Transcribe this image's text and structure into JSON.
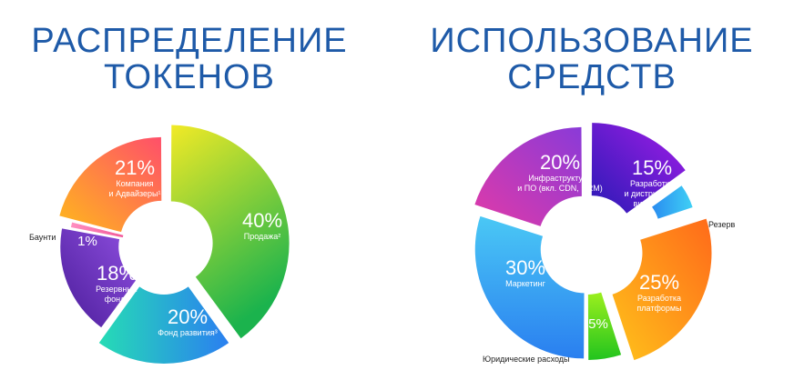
{
  "titles": {
    "left": [
      "РАСПРЕДЕЛЕНИЕ",
      "ТОКЕНОВ"
    ],
    "right": [
      "ИСПОЛЬЗОВАНИЕ",
      "СРЕДСТВ"
    ]
  },
  "chart_data": [
    {
      "type": "pie",
      "title": "РАСПРЕДЕЛЕНИЕ ТОКЕНОВ",
      "slices": [
        {
          "label": "Продажа²",
          "value": 40,
          "display": "40%",
          "colors": [
            "#f2ea26",
            "#1bb34d"
          ]
        },
        {
          "label": "Фонд развития³",
          "value": 20,
          "display": "20%",
          "colors": [
            "#26dcb5",
            "#2a7ff0"
          ]
        },
        {
          "label": "Резервный фонд⁴",
          "value": 18,
          "display": "18%",
          "colors": [
            "#8f4fe0",
            "#4b1d9a"
          ]
        },
        {
          "label": "Баунти",
          "value": 1,
          "display": "1%",
          "colors": [
            "#ff8fc0",
            "#f25a9a"
          ]
        },
        {
          "label": "Компания и Адвайзеры¹",
          "value": 21,
          "display": "21%",
          "colors": [
            "#ffb81c",
            "#ff4f6a"
          ]
        }
      ]
    },
    {
      "type": "pie",
      "title": "ИСПОЛЬЗОВАНИЕ СРЕДСТВ",
      "slices": [
        {
          "label": "Разработка и дистрибуция видео игр",
          "value": 15,
          "display": "15%",
          "colors": [
            "#2a1ab5",
            "#a21de8"
          ]
        },
        {
          "label": "Резерв",
          "value": 5,
          "display": "5%",
          "colors": [
            "#2a8cf0",
            "#3fd0f5"
          ]
        },
        {
          "label": "Разработка платформы",
          "value": 25,
          "display": "25%",
          "colors": [
            "#ff6a1a",
            "#ffc21a"
          ]
        },
        {
          "label": "Юридические расходы",
          "value": 5,
          "display": "5%",
          "colors": [
            "#9bef1e",
            "#22c41e"
          ]
        },
        {
          "label": "Маркетинг",
          "value": 30,
          "display": "30%",
          "colors": [
            "#4ac8f5",
            "#2a7ff0"
          ]
        },
        {
          "label": "Инфраструктура и ПО (вкл. CDN, DRM)",
          "value": 20,
          "display": "20%",
          "colors": [
            "#e03aa8",
            "#8a3ad8"
          ]
        }
      ]
    }
  ],
  "slice_text": {
    "left_40": [
      "Продажа²"
    ],
    "left_20": [
      "Фонд развития³"
    ],
    "left_18": [
      "Резервный",
      "фонд⁴"
    ],
    "left_1": [],
    "left_21": [
      "Компания",
      "и Адвайзеры¹"
    ],
    "right_15": [
      "Разработка",
      "и дистрибуция",
      "видео игр"
    ],
    "right_5a": [],
    "right_25": [
      "Разработка",
      "платформы"
    ],
    "right_5b": [],
    "right_30": [
      "Маркетинг"
    ],
    "right_20": [
      "Инфраструктура",
      "и ПО (вкл. CDN, DRM)"
    ]
  },
  "external_labels": {
    "bounty": "Баунти",
    "reserve": "Резерв",
    "legal": "Юридические расходы"
  }
}
